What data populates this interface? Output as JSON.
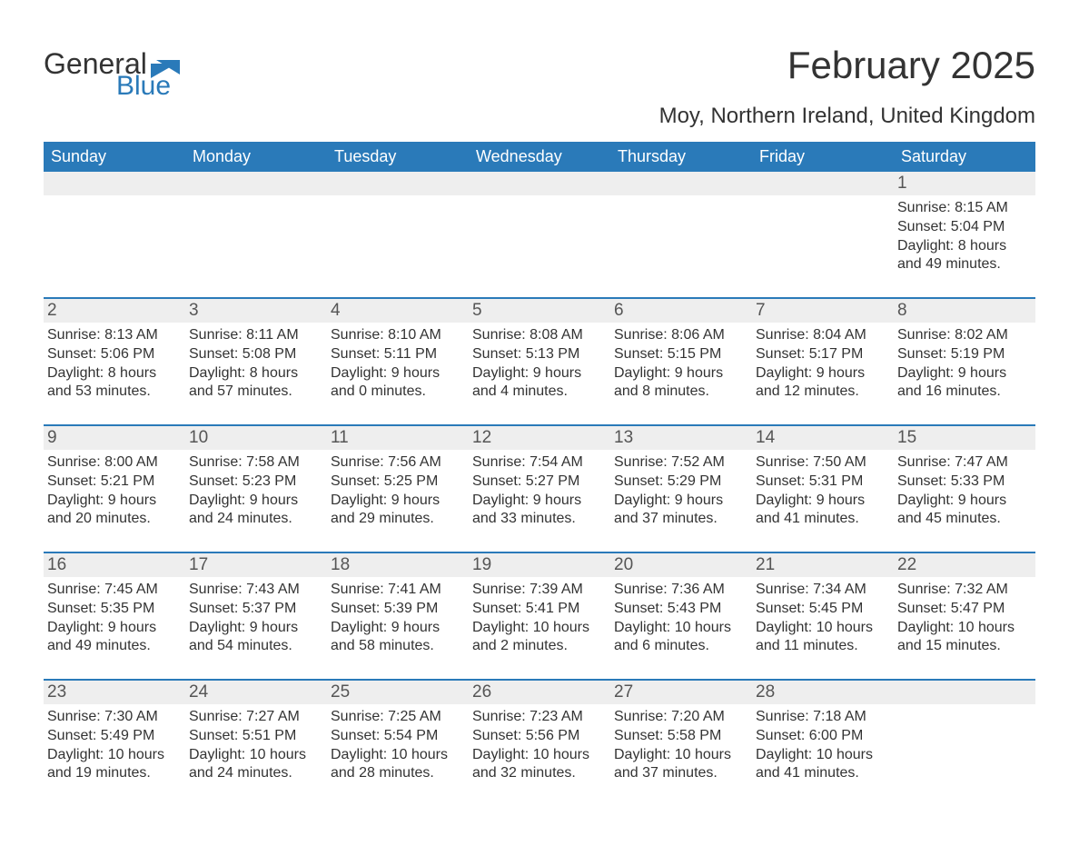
{
  "logo": {
    "word1": "General",
    "word2": "Blue"
  },
  "title": "February 2025",
  "location": "Moy, Northern Ireland, United Kingdom",
  "colors": {
    "header_bg": "#2a7ab9",
    "header_text": "#ffffff",
    "daynum_bg": "#eeeeee",
    "rule": "#2a7ab9",
    "body_text": "#333333",
    "logo_blue": "#2a7ab9"
  },
  "day_headers": [
    "Sunday",
    "Monday",
    "Tuesday",
    "Wednesday",
    "Thursday",
    "Friday",
    "Saturday"
  ],
  "weeks": [
    [
      null,
      null,
      null,
      null,
      null,
      null,
      {
        "n": "1",
        "sunrise": "8:15 AM",
        "sunset": "5:04 PM",
        "dl1": "Daylight: 8 hours",
        "dl2": "and 49 minutes."
      }
    ],
    [
      {
        "n": "2",
        "sunrise": "8:13 AM",
        "sunset": "5:06 PM",
        "dl1": "Daylight: 8 hours",
        "dl2": "and 53 minutes."
      },
      {
        "n": "3",
        "sunrise": "8:11 AM",
        "sunset": "5:08 PM",
        "dl1": "Daylight: 8 hours",
        "dl2": "and 57 minutes."
      },
      {
        "n": "4",
        "sunrise": "8:10 AM",
        "sunset": "5:11 PM",
        "dl1": "Daylight: 9 hours",
        "dl2": "and 0 minutes."
      },
      {
        "n": "5",
        "sunrise": "8:08 AM",
        "sunset": "5:13 PM",
        "dl1": "Daylight: 9 hours",
        "dl2": "and 4 minutes."
      },
      {
        "n": "6",
        "sunrise": "8:06 AM",
        "sunset": "5:15 PM",
        "dl1": "Daylight: 9 hours",
        "dl2": "and 8 minutes."
      },
      {
        "n": "7",
        "sunrise": "8:04 AM",
        "sunset": "5:17 PM",
        "dl1": "Daylight: 9 hours",
        "dl2": "and 12 minutes."
      },
      {
        "n": "8",
        "sunrise": "8:02 AM",
        "sunset": "5:19 PM",
        "dl1": "Daylight: 9 hours",
        "dl2": "and 16 minutes."
      }
    ],
    [
      {
        "n": "9",
        "sunrise": "8:00 AM",
        "sunset": "5:21 PM",
        "dl1": "Daylight: 9 hours",
        "dl2": "and 20 minutes."
      },
      {
        "n": "10",
        "sunrise": "7:58 AM",
        "sunset": "5:23 PM",
        "dl1": "Daylight: 9 hours",
        "dl2": "and 24 minutes."
      },
      {
        "n": "11",
        "sunrise": "7:56 AM",
        "sunset": "5:25 PM",
        "dl1": "Daylight: 9 hours",
        "dl2": "and 29 minutes."
      },
      {
        "n": "12",
        "sunrise": "7:54 AM",
        "sunset": "5:27 PM",
        "dl1": "Daylight: 9 hours",
        "dl2": "and 33 minutes."
      },
      {
        "n": "13",
        "sunrise": "7:52 AM",
        "sunset": "5:29 PM",
        "dl1": "Daylight: 9 hours",
        "dl2": "and 37 minutes."
      },
      {
        "n": "14",
        "sunrise": "7:50 AM",
        "sunset": "5:31 PM",
        "dl1": "Daylight: 9 hours",
        "dl2": "and 41 minutes."
      },
      {
        "n": "15",
        "sunrise": "7:47 AM",
        "sunset": "5:33 PM",
        "dl1": "Daylight: 9 hours",
        "dl2": "and 45 minutes."
      }
    ],
    [
      {
        "n": "16",
        "sunrise": "7:45 AM",
        "sunset": "5:35 PM",
        "dl1": "Daylight: 9 hours",
        "dl2": "and 49 minutes."
      },
      {
        "n": "17",
        "sunrise": "7:43 AM",
        "sunset": "5:37 PM",
        "dl1": "Daylight: 9 hours",
        "dl2": "and 54 minutes."
      },
      {
        "n": "18",
        "sunrise": "7:41 AM",
        "sunset": "5:39 PM",
        "dl1": "Daylight: 9 hours",
        "dl2": "and 58 minutes."
      },
      {
        "n": "19",
        "sunrise": "7:39 AM",
        "sunset": "5:41 PM",
        "dl1": "Daylight: 10 hours",
        "dl2": "and 2 minutes."
      },
      {
        "n": "20",
        "sunrise": "7:36 AM",
        "sunset": "5:43 PM",
        "dl1": "Daylight: 10 hours",
        "dl2": "and 6 minutes."
      },
      {
        "n": "21",
        "sunrise": "7:34 AM",
        "sunset": "5:45 PM",
        "dl1": "Daylight: 10 hours",
        "dl2": "and 11 minutes."
      },
      {
        "n": "22",
        "sunrise": "7:32 AM",
        "sunset": "5:47 PM",
        "dl1": "Daylight: 10 hours",
        "dl2": "and 15 minutes."
      }
    ],
    [
      {
        "n": "23",
        "sunrise": "7:30 AM",
        "sunset": "5:49 PM",
        "dl1": "Daylight: 10 hours",
        "dl2": "and 19 minutes."
      },
      {
        "n": "24",
        "sunrise": "7:27 AM",
        "sunset": "5:51 PM",
        "dl1": "Daylight: 10 hours",
        "dl2": "and 24 minutes."
      },
      {
        "n": "25",
        "sunrise": "7:25 AM",
        "sunset": "5:54 PM",
        "dl1": "Daylight: 10 hours",
        "dl2": "and 28 minutes."
      },
      {
        "n": "26",
        "sunrise": "7:23 AM",
        "sunset": "5:56 PM",
        "dl1": "Daylight: 10 hours",
        "dl2": "and 32 minutes."
      },
      {
        "n": "27",
        "sunrise": "7:20 AM",
        "sunset": "5:58 PM",
        "dl1": "Daylight: 10 hours",
        "dl2": "and 37 minutes."
      },
      {
        "n": "28",
        "sunrise": "7:18 AM",
        "sunset": "6:00 PM",
        "dl1": "Daylight: 10 hours",
        "dl2": "and 41 minutes."
      },
      null
    ]
  ],
  "labels": {
    "sunrise": "Sunrise: ",
    "sunset": "Sunset: "
  }
}
